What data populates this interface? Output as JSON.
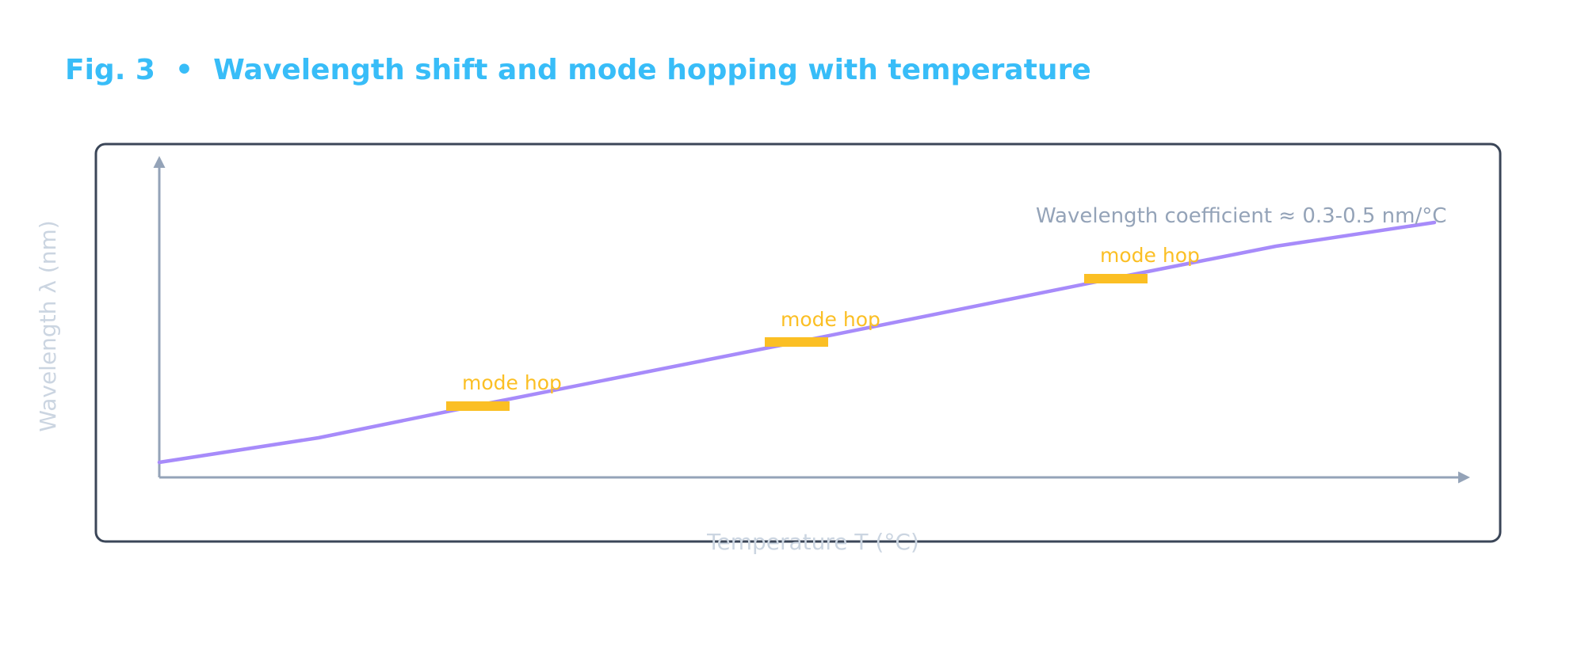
{
  "figure": {
    "title": "Fig. 3  •  Wavelength shift and mode hopping with temperature"
  },
  "axes": {
    "y_label": "Wavelength λ (nm)",
    "x_label": "Temperature T (°C)"
  },
  "annotations": {
    "coefficient": "Wavelength coefficient ≈ 0.3-0.5 nm/°C",
    "mode_hops": [
      {
        "label": "mode hop"
      },
      {
        "label": "mode hop"
      },
      {
        "label": "mode hop"
      }
    ]
  },
  "colors": {
    "title": "#38bdf8",
    "frame": "#3b4658",
    "axis": "#94a3b8",
    "axis_label": "#cbd5e1",
    "coefficient_text": "#94a3b8",
    "curve": "#a78bfa",
    "mode_hop": "#fbbf24"
  }
}
